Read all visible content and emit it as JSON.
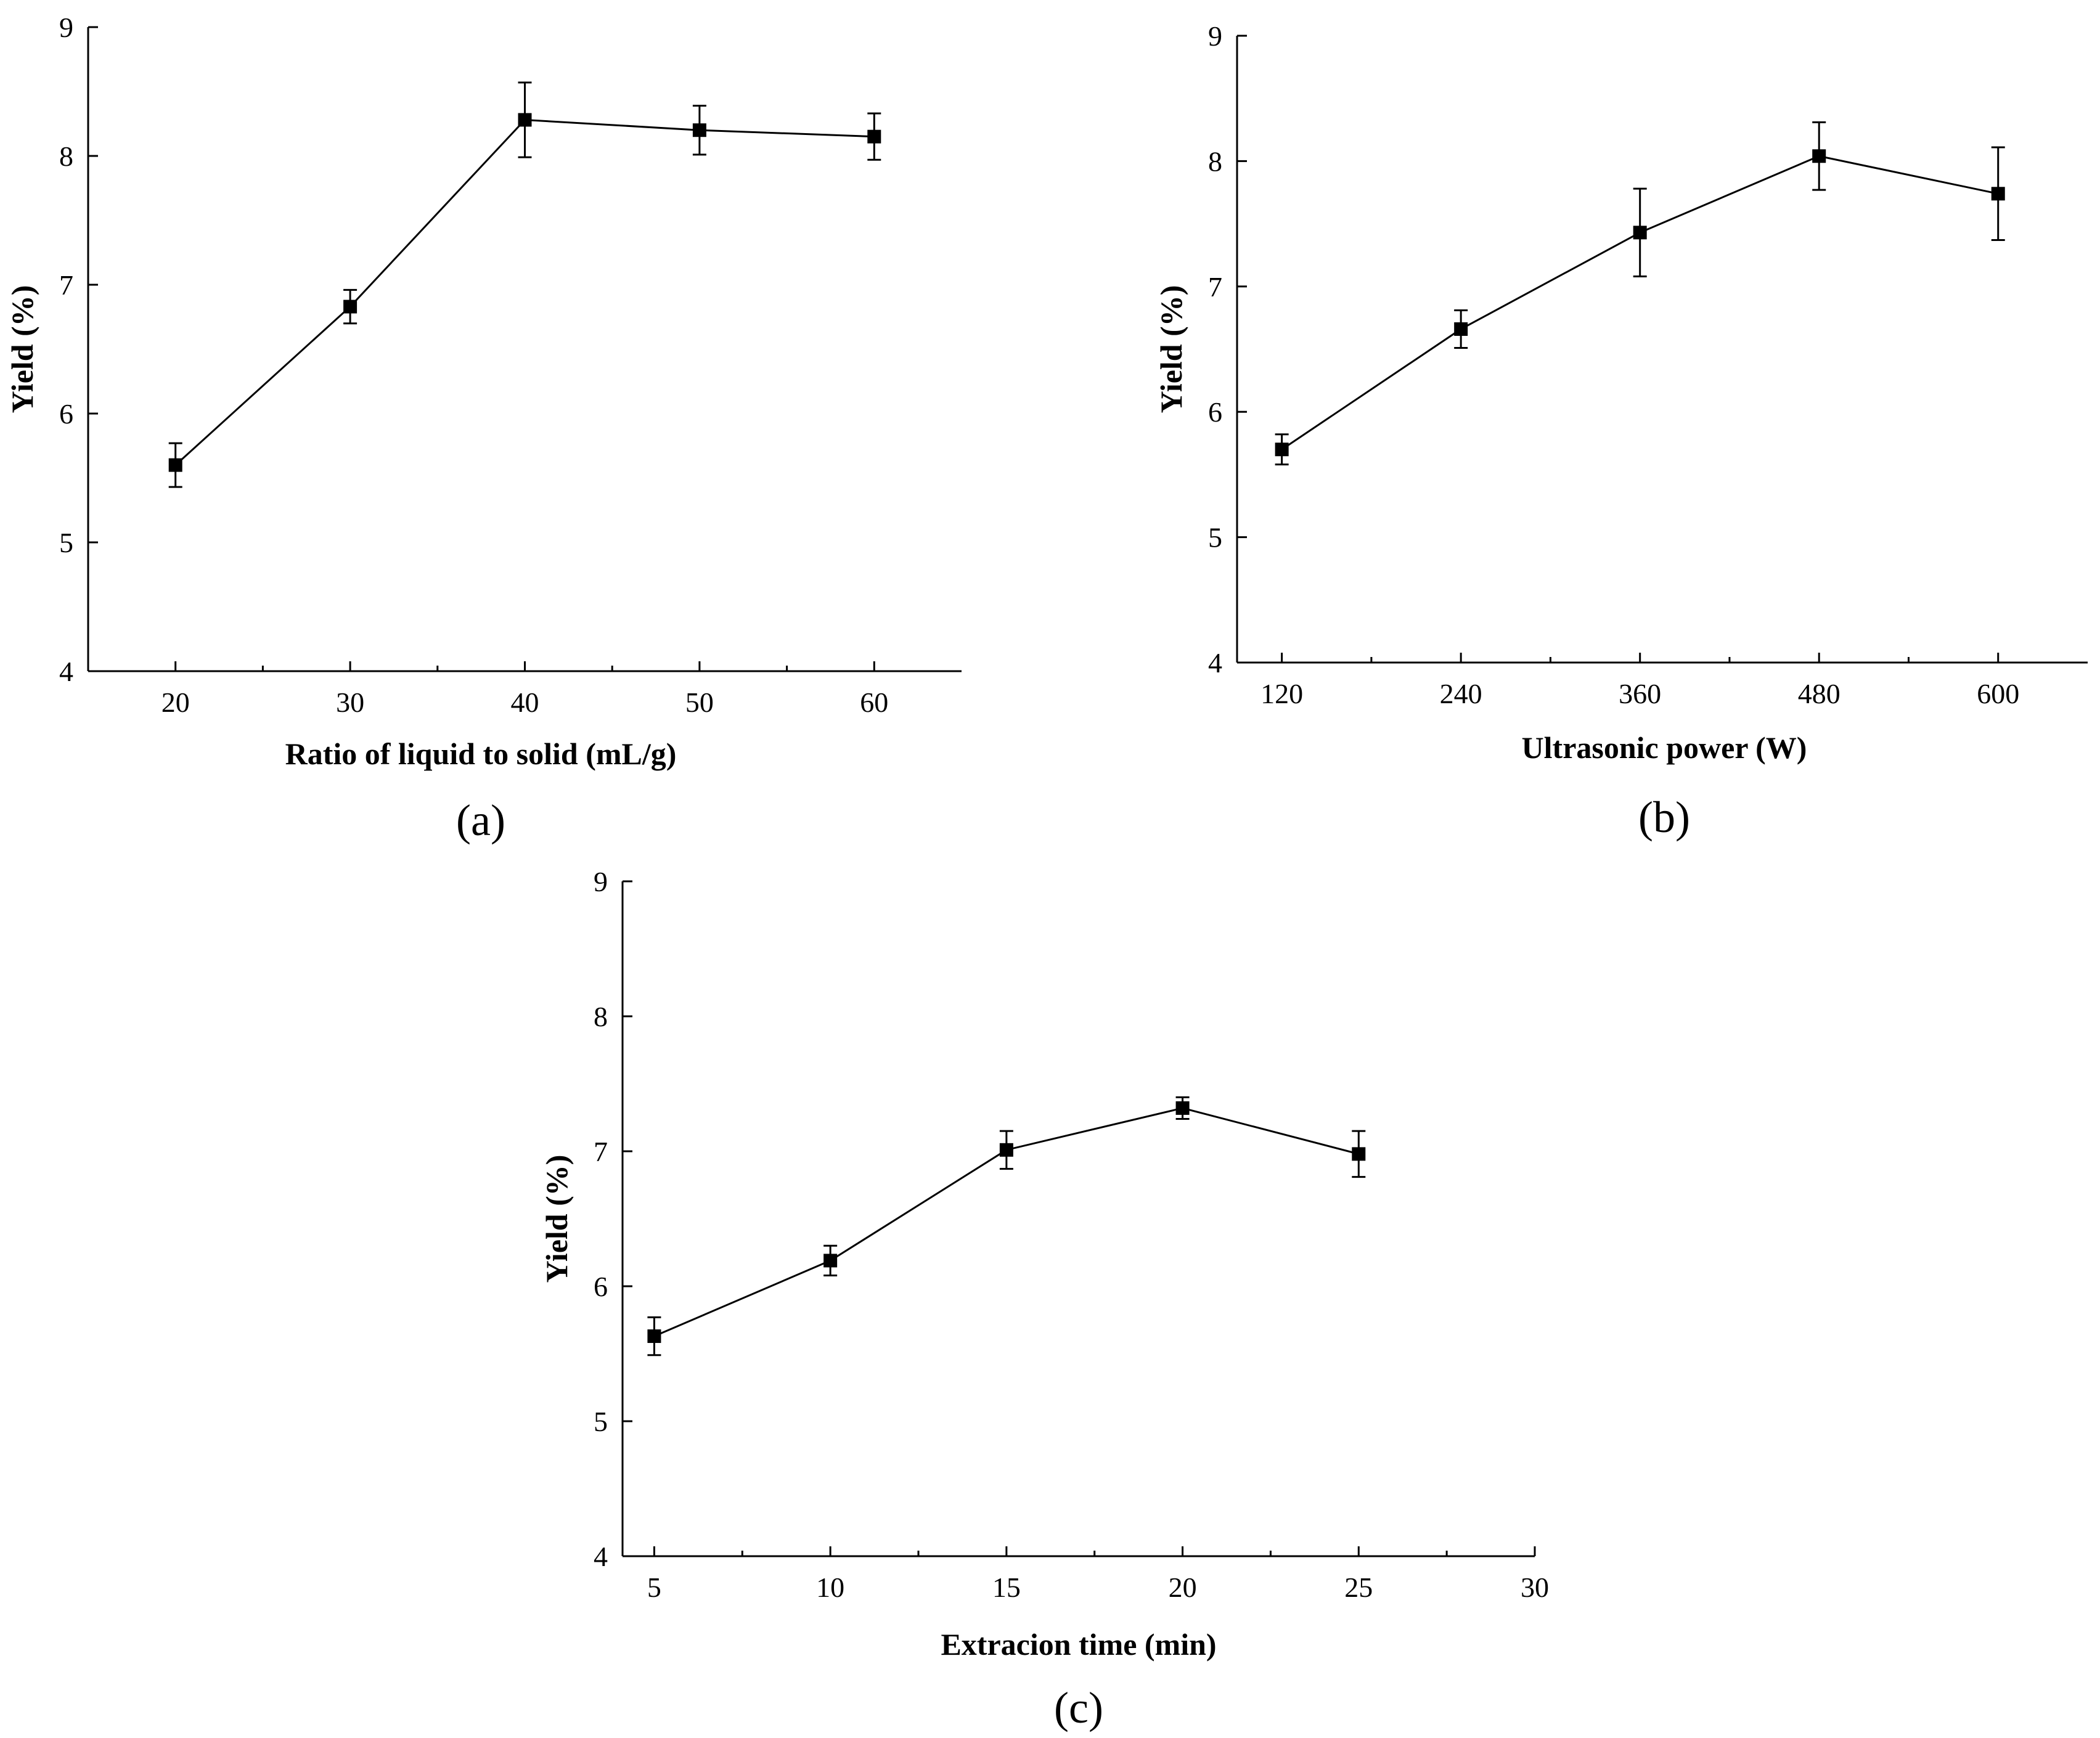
{
  "chart_data": [
    {
      "id": "a",
      "type": "line",
      "panel_label": "(a)",
      "xlabel": "Ratio of liquid to solid (mL/g)",
      "ylabel": "Yield (%)",
      "xlim": [
        15,
        65
      ],
      "ylim": [
        4,
        9
      ],
      "xticks": [
        20,
        30,
        40,
        50,
        60
      ],
      "xtick_labels": [
        "20",
        "30",
        "40",
        "50",
        "60"
      ],
      "xminor": [
        25,
        35,
        45,
        55
      ],
      "yticks": [
        4,
        5,
        6,
        7,
        8,
        9
      ],
      "ytick_labels": [
        "4",
        "5",
        "6",
        "7",
        "8",
        "9"
      ],
      "series": [
        {
          "name": "Yield",
          "x": [
            20,
            30,
            40,
            50,
            60
          ],
          "values": [
            5.6,
            6.83,
            8.28,
            8.2,
            8.15
          ],
          "err": [
            0.17,
            0.13,
            0.29,
            0.19,
            0.18
          ]
        }
      ]
    },
    {
      "id": "b",
      "type": "line",
      "panel_label": "(b)",
      "xlabel": "Ultrasonic power (W)",
      "ylabel": "Yield (%)",
      "xlim": [
        90,
        660
      ],
      "ylim": [
        4,
        9
      ],
      "xticks": [
        120,
        240,
        360,
        480,
        600
      ],
      "xtick_labels": [
        "120",
        "240",
        "360",
        "480",
        "600"
      ],
      "xminor": [
        180,
        300,
        420,
        540
      ],
      "yticks": [
        4,
        5,
        6,
        7,
        8,
        9
      ],
      "ytick_labels": [
        "4",
        "5",
        "6",
        "7",
        "8",
        "9"
      ],
      "series": [
        {
          "name": "Yield",
          "x": [
            120,
            240,
            360,
            480,
            600
          ],
          "values": [
            5.7,
            6.66,
            7.43,
            8.04,
            7.74
          ],
          "err": [
            0.12,
            0.15,
            0.35,
            0.27,
            0.37
          ]
        }
      ]
    },
    {
      "id": "c",
      "type": "line",
      "panel_label": "(c)",
      "xlabel": "Extracion time (min)",
      "ylabel": "Yield (%)",
      "xlim": [
        4.1,
        30
      ],
      "ylim": [
        4,
        9
      ],
      "xticks": [
        5,
        10,
        15,
        20,
        25,
        30
      ],
      "xtick_labels": [
        "5",
        "10",
        "15",
        "20",
        "25",
        "30"
      ],
      "xminor": [
        7.5,
        12.5,
        17.5,
        22.5,
        27.5
      ],
      "yticks": [
        4,
        5,
        6,
        7,
        8,
        9
      ],
      "ytick_labels": [
        "4",
        "5",
        "6",
        "7",
        "8",
        "9"
      ],
      "series": [
        {
          "name": "Yield",
          "x": [
            5,
            10,
            15,
            20,
            25
          ],
          "values": [
            5.63,
            6.19,
            7.01,
            7.32,
            6.98
          ],
          "err": [
            0.14,
            0.11,
            0.14,
            0.08,
            0.17
          ]
        }
      ]
    }
  ]
}
